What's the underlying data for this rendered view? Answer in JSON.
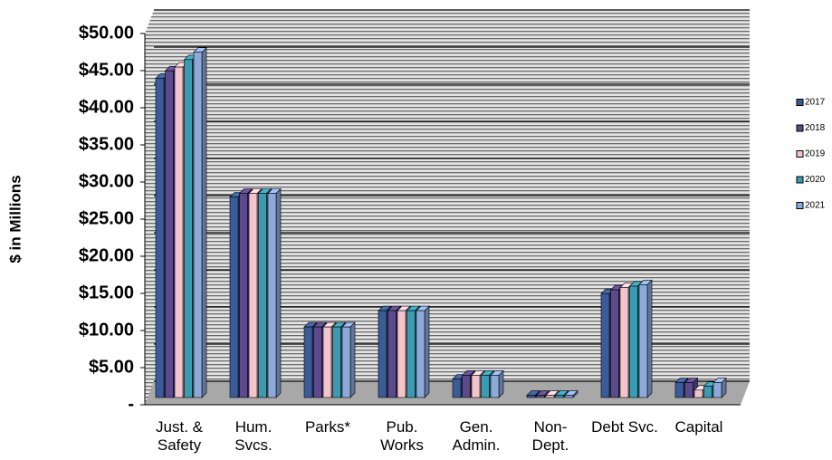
{
  "chart_data": {
    "type": "bar",
    "y_label": "$ in Millions",
    "categories": [
      "Just. & Safety",
      "Hum. Svcs.",
      "Parks*",
      "Pub. Works",
      "Gen. Admin.",
      "Non-Dept.",
      "Debt Svc.",
      "Capital"
    ],
    "series": [
      {
        "name": "2017",
        "color": "#3b5c98",
        "values": [
          43,
          27,
          9.5,
          11.7,
          2.5,
          0.3,
          14,
          2
        ]
      },
      {
        "name": "2018",
        "color": "#5c4a8c",
        "values": [
          44,
          27.5,
          9.5,
          11.7,
          3,
          0.3,
          14.5,
          2
        ]
      },
      {
        "name": "2019",
        "color": "#f2c4cc",
        "values": [
          44.5,
          27.5,
          9.5,
          11.7,
          3,
          0.3,
          14.8,
          1
        ]
      },
      {
        "name": "2020",
        "color": "#3a9bb2",
        "values": [
          45.5,
          27.5,
          9.5,
          11.7,
          3,
          0.3,
          15,
          1.5
        ]
      },
      {
        "name": "2021",
        "color": "#8ca9da",
        "values": [
          46.5,
          27.5,
          9.5,
          11.7,
          3,
          0.3,
          15.2,
          2
        ]
      }
    ],
    "ylim": [
      0,
      50
    ],
    "yticks": [
      {
        "value": 0,
        "label": "-"
      },
      {
        "value": 5,
        "label": "$5.00"
      },
      {
        "value": 10,
        "label": "$10.00"
      },
      {
        "value": 15,
        "label": "$15.00"
      },
      {
        "value": 20,
        "label": "$20.00"
      },
      {
        "value": 25,
        "label": "$25.00"
      },
      {
        "value": 30,
        "label": "$30.00"
      },
      {
        "value": 35,
        "label": "$35.00"
      },
      {
        "value": 40,
        "label": "$40.00"
      },
      {
        "value": 45,
        "label": "$45.00"
      },
      {
        "value": 50,
        "label": "$50.00"
      }
    ],
    "grid": true,
    "legend": "right"
  }
}
